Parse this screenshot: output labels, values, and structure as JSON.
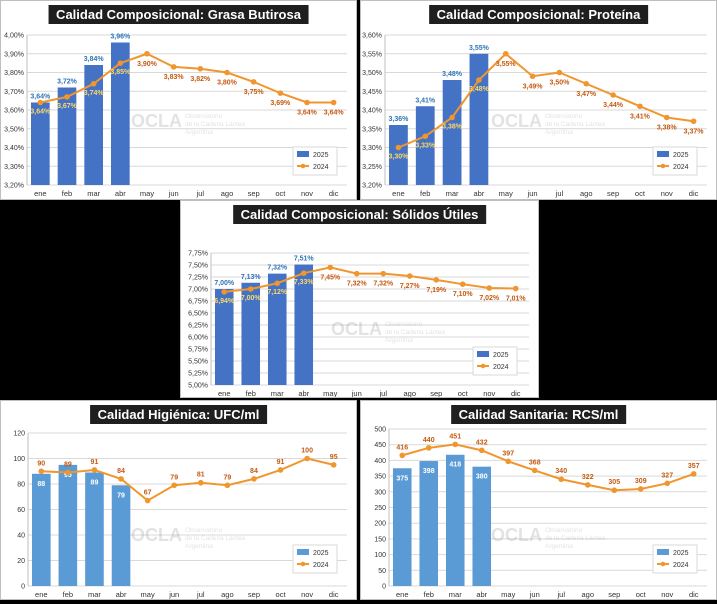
{
  "colors": {
    "bar": "#4472c4",
    "bar_light": "#5b9bd5",
    "line": "#f0962e",
    "bar_label": "#2e75b6",
    "line_label": "#c55a11",
    "grid": "#d9d9d9"
  },
  "watermark": {
    "brand": "OCLA",
    "line1": "Observatorio",
    "line2": "de la Cadena Láctea",
    "line3": "Argentina"
  },
  "chart_data": [
    {
      "type": "bar",
      "title": "Calidad Composicional: Grasa Butirosa",
      "categories": [
        "ene",
        "feb",
        "mar",
        "abr",
        "may",
        "jun",
        "jul",
        "ago",
        "sep",
        "oct",
        "nov",
        "dic"
      ],
      "series": [
        {
          "name": "2025",
          "type": "bar",
          "values": [
            3.64,
            3.72,
            3.84,
            3.96,
            null,
            null,
            null,
            null,
            null,
            null,
            null,
            null
          ],
          "labels": [
            "3,64%",
            "3,72%",
            "3,84%",
            "3,96%",
            "",
            "",
            "",
            "",
            "",
            "",
            "",
            ""
          ]
        },
        {
          "name": "2024",
          "type": "line",
          "values": [
            3.64,
            3.67,
            3.74,
            3.85,
            3.9,
            3.83,
            3.82,
            3.8,
            3.75,
            3.69,
            3.64,
            3.64
          ],
          "labels": [
            "3,64%",
            "3,67%",
            "3,74%",
            "3,85%",
            "3,90%",
            "3,83%",
            "3,82%",
            "3,80%",
            "3,75%",
            "3,69%",
            "3,64%",
            "3,64%"
          ]
        }
      ],
      "ylim": [
        3.2,
        4.0
      ],
      "yticks": [
        "3,20%",
        "3,30%",
        "3,40%",
        "3,50%",
        "3,60%",
        "3,70%",
        "3,80%",
        "3,90%",
        "4,00%"
      ],
      "legend": [
        "2025",
        "2024"
      ]
    },
    {
      "type": "bar",
      "title": "Calidad Composicional: Proteína",
      "categories": [
        "ene",
        "feb",
        "mar",
        "abr",
        "may",
        "jun",
        "jul",
        "ago",
        "sep",
        "oct",
        "nov",
        "dic"
      ],
      "series": [
        {
          "name": "2025",
          "type": "bar",
          "values": [
            3.36,
            3.41,
            3.48,
            3.55,
            null,
            null,
            null,
            null,
            null,
            null,
            null,
            null
          ],
          "labels": [
            "3,36%",
            "3,41%",
            "3,48%",
            "3,55%",
            "",
            "",
            "",
            "",
            "",
            "",
            "",
            ""
          ]
        },
        {
          "name": "2024",
          "type": "line",
          "values": [
            3.3,
            3.33,
            3.38,
            3.48,
            3.55,
            3.49,
            3.5,
            3.47,
            3.44,
            3.41,
            3.38,
            3.37
          ],
          "labels": [
            "3,30%",
            "3,33%",
            "3,38%",
            "3,48%",
            "3,55%",
            "3,49%",
            "3,50%",
            "3,47%",
            "3,44%",
            "3,41%",
            "3,38%",
            "3,37%"
          ]
        }
      ],
      "ylim": [
        3.2,
        3.6
      ],
      "yticks": [
        "3,20%",
        "3,25%",
        "3,30%",
        "3,35%",
        "3,40%",
        "3,45%",
        "3,50%",
        "3,55%",
        "3,60%"
      ],
      "legend": [
        "2025",
        "2024"
      ]
    },
    {
      "type": "bar",
      "title": "Calidad Composicional: Sólidos Útiles",
      "categories": [
        "ene",
        "feb",
        "mar",
        "abr",
        "may",
        "jun",
        "jul",
        "ago",
        "sep",
        "oct",
        "nov",
        "dic"
      ],
      "series": [
        {
          "name": "2025",
          "type": "bar",
          "values": [
            7.0,
            7.13,
            7.32,
            7.51,
            null,
            null,
            null,
            null,
            null,
            null,
            null,
            null
          ],
          "labels": [
            "7,00%",
            "7,13%",
            "7,32%",
            "7,51%",
            "",
            "",
            "",
            "",
            "",
            "",
            "",
            ""
          ]
        },
        {
          "name": "2024",
          "type": "line",
          "values": [
            6.94,
            7.0,
            7.12,
            7.33,
            7.45,
            7.32,
            7.32,
            7.27,
            7.19,
            7.1,
            7.02,
            7.01
          ],
          "labels": [
            "6,94%",
            "7,00%",
            "7,12%",
            "7,33%",
            "7,45%",
            "7,32%",
            "7,32%",
            "7,27%",
            "7,19%",
            "7,10%",
            "7,02%",
            "7,01%"
          ]
        }
      ],
      "ylim": [
        5.0,
        7.75
      ],
      "yticks": [
        "5,00%",
        "5,25%",
        "5,50%",
        "5,75%",
        "6,00%",
        "6,25%",
        "6,50%",
        "6,75%",
        "7,00%",
        "7,25%",
        "7,50%",
        "7,75%"
      ],
      "legend": [
        "2025",
        "2024"
      ]
    },
    {
      "type": "bar",
      "title": "Calidad Higiénica: UFC/ml",
      "categories": [
        "ene",
        "feb",
        "mar",
        "abr",
        "may",
        "jun",
        "jul",
        "ago",
        "sep",
        "oct",
        "nov",
        "dic"
      ],
      "series": [
        {
          "name": "2025",
          "type": "bar",
          "values": [
            88,
            95,
            89,
            79,
            null,
            null,
            null,
            null,
            null,
            null,
            null,
            null
          ],
          "labels": [
            "88",
            "95",
            "89",
            "79",
            "",
            "",
            "",
            "",
            "",
            "",
            "",
            ""
          ]
        },
        {
          "name": "2024",
          "type": "line",
          "values": [
            90,
            89,
            91,
            84,
            67,
            79,
            81,
            79,
            84,
            91,
            100,
            95
          ],
          "labels": [
            "90",
            "89",
            "91",
            "84",
            "67",
            "79",
            "81",
            "79",
            "84",
            "91",
            "100",
            "95"
          ]
        }
      ],
      "ylim": [
        0,
        120
      ],
      "yticks": [
        "0",
        "20",
        "40",
        "60",
        "80",
        "100",
        "120"
      ],
      "legend": [
        "2025",
        "2024"
      ]
    },
    {
      "type": "bar",
      "title": "Calidad Sanitaria: RCS/ml",
      "categories": [
        "ene",
        "feb",
        "mar",
        "abr",
        "may",
        "jun",
        "jul",
        "ago",
        "sep",
        "oct",
        "nov",
        "dic"
      ],
      "series": [
        {
          "name": "2025",
          "type": "bar",
          "values": [
            375,
            398,
            418,
            380,
            null,
            null,
            null,
            null,
            null,
            null,
            null,
            null
          ],
          "labels": [
            "375",
            "398",
            "418",
            "380",
            "",
            "",
            "",
            "",
            "",
            "",
            "",
            ""
          ]
        },
        {
          "name": "2024",
          "type": "line",
          "values": [
            416,
            440,
            451,
            432,
            397,
            368,
            340,
            322,
            305,
            309,
            327,
            357
          ],
          "labels": [
            "416",
            "440",
            "451",
            "432",
            "397",
            "368",
            "340",
            "322",
            "305",
            "309",
            "327",
            "357"
          ]
        }
      ],
      "ylim": [
        0,
        500
      ],
      "yticks": [
        "0",
        "50",
        "100",
        "150",
        "200",
        "250",
        "300",
        "350",
        "400",
        "450",
        "500"
      ],
      "legend": [
        "2025",
        "2024"
      ]
    }
  ]
}
